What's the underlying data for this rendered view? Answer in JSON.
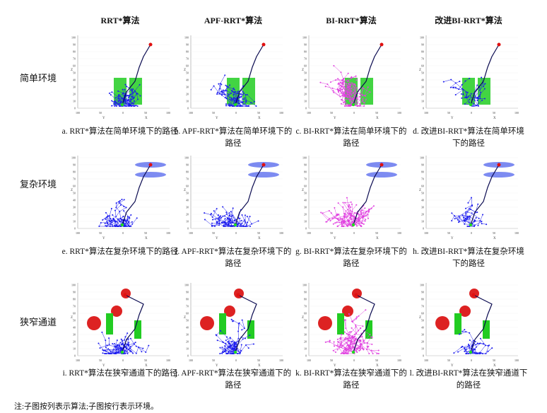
{
  "columns": [
    "RRT*算法",
    "APF-RRT*算法",
    "BI-RRT*算法",
    "改进BI-RRT*算法"
  ],
  "rows": [
    "简单环境",
    "复杂环境",
    "狭窄通道"
  ],
  "captions": [
    [
      "a. RRT*算法在简单环境下的路径",
      "b. APF-RRT*算法在简单环境下的路径",
      "c. BI-RRT*算法在简单环境下的路径",
      "d. 改进BI-RRT*算法在简单环境下的路径"
    ],
    [
      "e. RRT*算法在复杂环境下的路径",
      "f. APF-RRT*算法在复杂环境下的路径",
      "g. BI-RRT*算法在复杂环境下的路径",
      "h. 改进BI-RRT*算法在复杂环境下的路径"
    ],
    [
      "i. RRT*算法在狭窄通道下的路径",
      "j. APF-RRT*算法在狭窄通道下的路径",
      "k. BI-RRT*算法在狭窄通道下的路径",
      "l. 改进BI-RRT*算法在狭窄通道下的路径"
    ]
  ],
  "axes": {
    "z_label": "Z",
    "y_label": "Y",
    "x_label": "X",
    "z_ticks": [
      "0",
      "10",
      "20",
      "30",
      "40",
      "50",
      "60",
      "70",
      "80",
      "90",
      "100"
    ],
    "ground_ticks": [
      "100",
      "50",
      "0",
      "50",
      "100"
    ]
  },
  "note": "注:子图按列表示算法;子图按行表示环境。",
  "colors": {
    "tree": "#1a1aee",
    "tree2": "#e040e0",
    "path": "#0a0a50",
    "goal": "#e01010",
    "start": "#20dd20",
    "cyl": "#22cc22",
    "disk": "#6677ee",
    "sphere": "#dd2222"
  }
}
